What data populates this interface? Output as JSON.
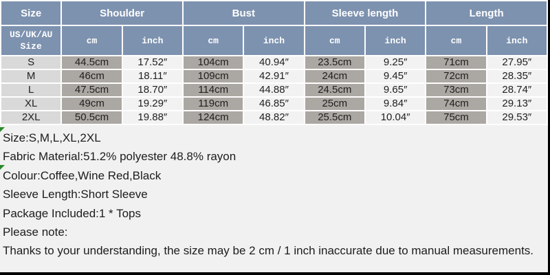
{
  "table": {
    "col_groups": [
      {
        "label": "Size",
        "span": 1
      },
      {
        "label": "Shoulder",
        "span": 2
      },
      {
        "label": "Bust",
        "span": 2
      },
      {
        "label": "Sleeve length",
        "span": 2
      },
      {
        "label": "Length",
        "span": 2
      }
    ],
    "sub_headers": [
      "US/UK/AU Size",
      "cm",
      "inch",
      "cm",
      "inch",
      "cm",
      "inch",
      "cm",
      "inch"
    ],
    "rows": [
      {
        "size": "S",
        "cells": [
          "44.5cm",
          "17.52″",
          "104cm",
          "40.94″",
          "23.5cm",
          "9.25″",
          "71cm",
          "27.95″"
        ]
      },
      {
        "size": "M",
        "cells": [
          "46cm",
          "18.11″",
          "109cm",
          "42.91″",
          "24cm",
          "9.45″",
          "72cm",
          "28.35″"
        ]
      },
      {
        "size": "L",
        "cells": [
          "47.5cm",
          "18.70″",
          "114cm",
          "44.88″",
          "24.5cm",
          "9.65″",
          "73cm",
          "28.74″"
        ]
      },
      {
        "size": "XL",
        "cells": [
          "49cm",
          "19.29″",
          "119cm",
          "46.85″",
          "25cm",
          "9.84″",
          "74cm",
          "29.13″"
        ]
      },
      {
        "size": "2XL",
        "cells": [
          "50.5cm",
          "19.88″",
          "124cm",
          "48.82″",
          "25.5cm",
          "10.04″",
          "75cm",
          "29.53″"
        ]
      }
    ]
  },
  "details": {
    "lines": [
      "Size:S,M,L,XL,2XL",
      "Fabric Material:51.2% polyester 48.8% rayon",
      "Colour:Coffee,Wine Red,Black",
      "Sleeve Length:Short Sleeve",
      "Package Included:1 * Tops",
      "Please note:",
      "Thanks to your understanding, the size may be 2 cm / 1 inch inaccurate due to manual measurements."
    ]
  },
  "colors": {
    "header_blue": "#7d92af",
    "cm_column_gray": "#aba7a2",
    "size_column_gray": "#d9d9d9",
    "inch_column_light": "#f2f2f2",
    "page_background": "#f1f1f1",
    "grid_border_white": "#ffffff",
    "edge_border_black": "#000000",
    "error_marker_green": "#2a8a2a",
    "text_dark": "#1f1f1f"
  }
}
